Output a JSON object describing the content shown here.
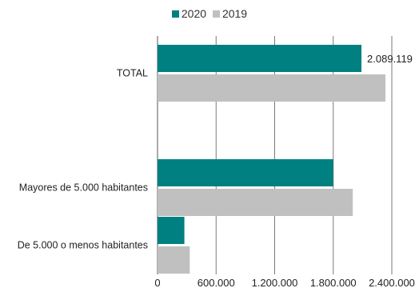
{
  "chart_data": {
    "type": "bar",
    "orientation": "horizontal",
    "categories": [
      "TOTAL",
      "Mayores de 5.000 habitantes",
      "De 5.000 o menos habitantes"
    ],
    "series": [
      {
        "name": "2020",
        "color": "#008080",
        "values": [
          2089119,
          1800000,
          275000
        ]
      },
      {
        "name": "2019",
        "color": "#c0c0c0",
        "values": [
          2335000,
          2000000,
          330000
        ]
      }
    ],
    "data_labels": [
      {
        "series": 0,
        "category": 0,
        "text": "2.089.119"
      }
    ],
    "xlim": [
      0,
      2400000
    ],
    "xticks": [
      {
        "value": 0,
        "label": "0"
      },
      {
        "value": 600000,
        "label": "600.000"
      },
      {
        "value": 1200000,
        "label": "1.200.000"
      },
      {
        "value": 1800000,
        "label": "1.800.000"
      },
      {
        "value": 2400000,
        "label": "2.400.000"
      }
    ],
    "grid": true,
    "legend": "top-center"
  }
}
